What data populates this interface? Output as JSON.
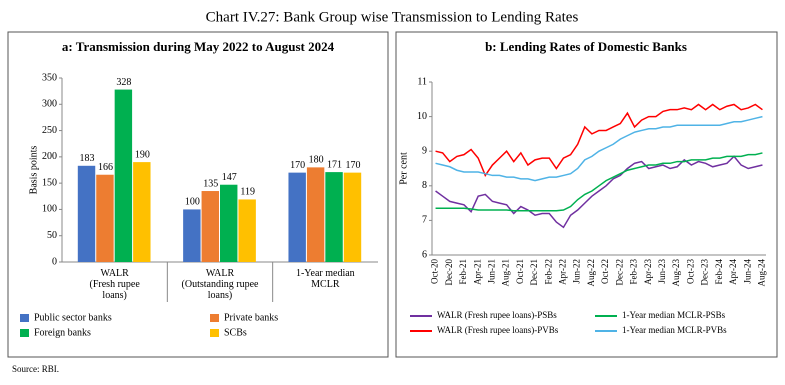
{
  "title": "Chart IV.27: Bank Group wise Transmission to Lending Rates",
  "source": "Source: RBI.",
  "chart_data": [
    {
      "type": "bar",
      "title": "a: Transmission during May 2022 to August 2024",
      "y_label": "Basis points",
      "categories": [
        "WALR\n(Fresh rupee\nloans)",
        "WALR\n(Outstanding rupee\nloans)",
        "1-Year median\nMCLR"
      ],
      "series": [
        {
          "name": "Public sector banks",
          "color": "#4472c4",
          "values": [
            183,
            100,
            170
          ]
        },
        {
          "name": "Private banks",
          "color": "#ed7d31",
          "values": [
            166,
            135,
            180
          ]
        },
        {
          "name": "Foreign banks",
          "color": "#00b050",
          "values": [
            328,
            147,
            171
          ]
        },
        {
          "name": "SCBs",
          "color": "#ffc000",
          "values": [
            190,
            119,
            170
          ]
        }
      ],
      "ylim": [
        0,
        350
      ],
      "yticks": [
        0,
        50,
        100,
        150,
        200,
        250,
        300,
        350
      ]
    },
    {
      "type": "line",
      "title": "b: Lending Rates of Domestic Banks",
      "y_label": "Per cent",
      "categories": [
        "Oct-20",
        null,
        "Dec-20",
        null,
        "Feb-21",
        null,
        "Apr-21",
        null,
        "Jun-21",
        null,
        "Aug-21",
        null,
        "Oct-21",
        null,
        "Dec-21",
        null,
        "Feb-22",
        null,
        "Apr-22",
        null,
        "Jun-22",
        null,
        "Aug-22",
        null,
        "Oct-22",
        null,
        "Dec-22",
        null,
        "Feb-23",
        null,
        "Apr-23",
        null,
        "Jun-23",
        null,
        "Aug-23",
        null,
        "Oct-23",
        null,
        "Dec-23",
        null,
        "Feb-24",
        null,
        "Apr-24",
        null,
        "Jun-24",
        null,
        "Aug-24"
      ],
      "series": [
        {
          "name": "WALR (Fresh rupee loans)-PSBs",
          "color": "#7030a0",
          "values": [
            7.85,
            7.7,
            7.55,
            7.5,
            7.45,
            7.25,
            7.7,
            7.75,
            7.55,
            7.5,
            7.45,
            7.2,
            7.4,
            7.3,
            7.15,
            7.2,
            7.2,
            6.95,
            6.8,
            7.15,
            7.3,
            7.5,
            7.7,
            7.85,
            8.0,
            8.2,
            8.3,
            8.5,
            8.65,
            8.7,
            8.5,
            8.55,
            8.6,
            8.5,
            8.55,
            8.75,
            8.6,
            8.7,
            8.65,
            8.55,
            8.6,
            8.65,
            8.85,
            8.6,
            8.5,
            8.55,
            8.6
          ]
        },
        {
          "name": "1-Year median MCLR-PSBs",
          "color": "#00b050",
          "values": [
            7.35,
            7.35,
            7.35,
            7.35,
            7.35,
            7.33,
            7.3,
            7.3,
            7.3,
            7.3,
            7.3,
            7.28,
            7.28,
            7.28,
            7.28,
            7.28,
            7.28,
            7.28,
            7.3,
            7.4,
            7.6,
            7.75,
            7.85,
            8.0,
            8.15,
            8.25,
            8.35,
            8.45,
            8.5,
            8.55,
            8.6,
            8.6,
            8.65,
            8.65,
            8.7,
            8.7,
            8.75,
            8.75,
            8.75,
            8.8,
            8.8,
            8.85,
            8.85,
            8.85,
            8.9,
            8.9,
            8.95
          ]
        },
        {
          "name": "WALR (Fresh rupee loans)-PVBs",
          "color": "#ff0000",
          "values": [
            9.0,
            8.95,
            8.7,
            8.85,
            8.9,
            9.05,
            8.8,
            8.3,
            8.6,
            8.8,
            9.0,
            8.7,
            8.95,
            8.6,
            8.75,
            8.8,
            8.8,
            8.5,
            8.8,
            8.9,
            9.2,
            9.7,
            9.5,
            9.6,
            9.6,
            9.7,
            9.8,
            10.1,
            9.7,
            9.9,
            10.0,
            10.0,
            10.15,
            10.2,
            10.2,
            10.25,
            10.2,
            10.35,
            10.2,
            10.35,
            10.2,
            10.3,
            10.35,
            10.2,
            10.25,
            10.35,
            10.2
          ]
        },
        {
          "name": "1-Year median MCLR-PVBs",
          "color": "#4fb3e6",
          "values": [
            8.65,
            8.6,
            8.55,
            8.45,
            8.4,
            8.4,
            8.4,
            8.35,
            8.3,
            8.3,
            8.25,
            8.25,
            8.2,
            8.2,
            8.15,
            8.2,
            8.25,
            8.25,
            8.3,
            8.35,
            8.5,
            8.75,
            8.85,
            9.0,
            9.1,
            9.2,
            9.35,
            9.45,
            9.55,
            9.6,
            9.65,
            9.65,
            9.7,
            9.7,
            9.75,
            9.75,
            9.75,
            9.75,
            9.75,
            9.75,
            9.75,
            9.8,
            9.85,
            9.85,
            9.9,
            9.95,
            10.0
          ]
        }
      ],
      "ylim": [
        6,
        11
      ],
      "yticks": [
        6,
        7,
        8,
        9,
        10,
        11
      ]
    }
  ]
}
